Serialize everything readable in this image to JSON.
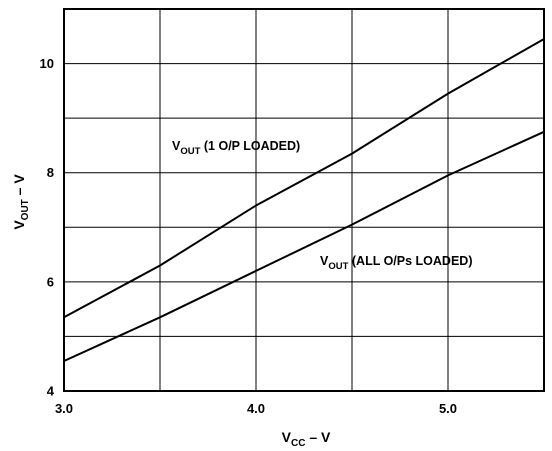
{
  "chart_data": {
    "type": "line",
    "x_range": [
      3.0,
      5.5
    ],
    "y_range": [
      4,
      11
    ],
    "x_ticks": [
      3.0,
      4.0,
      5.0
    ],
    "x_tick_labels": [
      "3.0",
      "4.0",
      "5.0"
    ],
    "x_gridlines": [
      3.5,
      4.0,
      4.5,
      5.0
    ],
    "y_ticks": [
      4,
      6,
      8,
      10
    ],
    "y_tick_labels": [
      "4",
      "6",
      "8",
      "10"
    ],
    "y_gridlines": [
      5,
      6,
      7,
      8,
      9,
      10
    ],
    "grid": true,
    "xlabel": {
      "main": "V",
      "sub": "CC",
      "rest": " – V"
    },
    "ylabel": {
      "main": "V",
      "sub": "OUT",
      "rest": " – V"
    },
    "series": [
      {
        "label": {
          "main": "V",
          "sub": "OUT",
          "rest": " (1 O/P LOADED)"
        },
        "x": [
          3.0,
          3.5,
          4.0,
          4.5,
          5.0,
          5.5
        ],
        "y": [
          5.35,
          6.3,
          7.4,
          8.35,
          9.45,
          10.45
        ]
      },
      {
        "label": {
          "main": "V",
          "sub": "OUT",
          "rest": " (ALL O/Ps LOADED)"
        },
        "x": [
          3.0,
          3.5,
          4.0,
          4.5,
          5.0,
          5.5
        ],
        "y": [
          4.55,
          5.35,
          6.2,
          7.05,
          7.95,
          8.75
        ]
      }
    ]
  }
}
